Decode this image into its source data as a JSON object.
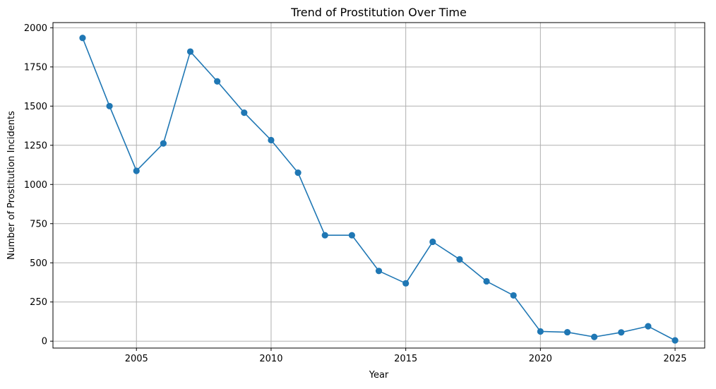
{
  "chart_data": {
    "type": "line",
    "title": "Trend of Prostitution Over Time",
    "xlabel": "Year",
    "ylabel": "Number of Prostitution Incidents",
    "x": [
      2003,
      2004,
      2005,
      2006,
      2007,
      2008,
      2009,
      2010,
      2011,
      2012,
      2013,
      2014,
      2015,
      2016,
      2017,
      2018,
      2019,
      2020,
      2021,
      2022,
      2023,
      2024,
      2025
    ],
    "series": [
      {
        "values": [
          1935,
          1500,
          1087,
          1262,
          1848,
          1658,
          1458,
          1283,
          1075,
          676,
          676,
          448,
          369,
          634,
          522,
          382,
          292,
          62,
          57,
          27,
          56,
          95,
          5
        ],
        "color": "#1f77b4",
        "marker": "circle"
      }
    ],
    "xticks": [
      2005,
      2010,
      2015,
      2020,
      2025
    ],
    "yticks": [
      0,
      250,
      500,
      750,
      1000,
      1250,
      1500,
      1750,
      2000
    ],
    "xlim": [
      2001.9,
      2026.1
    ],
    "ylim": [
      -44,
      2033
    ],
    "grid": true,
    "legend": "none"
  }
}
